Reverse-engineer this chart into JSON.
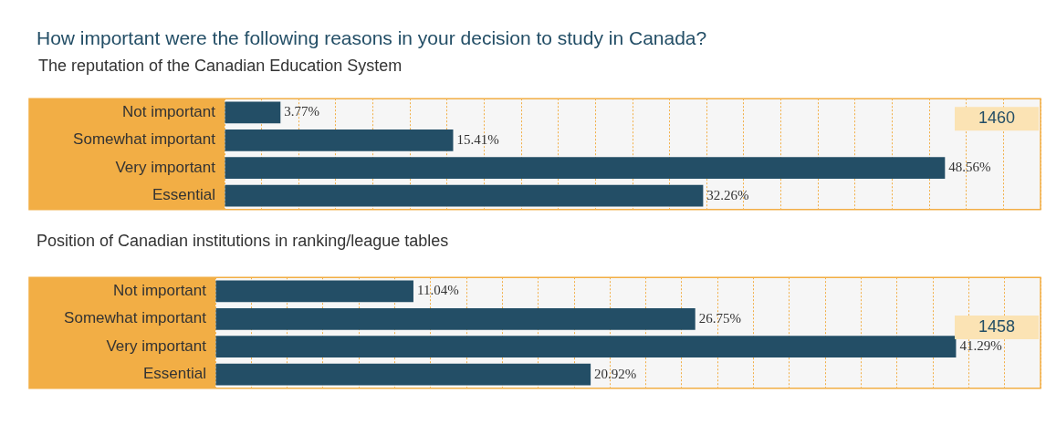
{
  "chart_data": [
    {
      "type": "bar",
      "orientation": "horizontal",
      "title": "How important were the following reasons in your decision to study in Canada?",
      "subtitle": "The reputation of the Canadian Education System",
      "categories": [
        "Not important",
        "Somewhat important",
        "Very important",
        "Essential"
      ],
      "values": [
        3.77,
        15.41,
        48.56,
        32.26
      ],
      "color": "#234e66",
      "value_labels": [
        "3.77%",
        "15.41%",
        "48.56%",
        "32.26%"
      ],
      "xlim": [
        0,
        55
      ],
      "xticks": [
        {
          "value": 0,
          "label": null
        },
        {
          "value": 2.5,
          "label": null
        },
        {
          "value": 5,
          "label": null
        },
        {
          "value": 7.5,
          "label": null
        },
        {
          "value": 10,
          "label": null
        },
        {
          "value": 12.5,
          "label": null
        },
        {
          "value": 15,
          "label": null
        },
        {
          "value": 17.5,
          "label": null
        },
        {
          "value": 20,
          "label": null
        },
        {
          "value": 22.5,
          "label": null
        },
        {
          "value": 25,
          "label": null
        },
        {
          "value": 27.5,
          "label": null
        },
        {
          "value": 30,
          "label": null
        },
        {
          "value": 32.5,
          "label": null
        },
        {
          "value": 35,
          "label": null
        },
        {
          "value": 37.5,
          "label": null
        },
        {
          "value": 40,
          "label": null
        },
        {
          "value": 42.5,
          "label": null
        },
        {
          "value": 45,
          "label": null
        },
        {
          "value": 47.5,
          "label": null
        },
        {
          "value": 50,
          "label": null
        },
        {
          "value": 52.5,
          "label": null
        },
        {
          "value": 55,
          "label": null
        }
      ],
      "tick_labels": "y",
      "grid": "x",
      "legend": false,
      "annotations": [
        "1460"
      ]
    },
    {
      "type": "bar",
      "orientation": "horizontal",
      "title": "Position of Canadian institutions in ranking/league tables",
      "categories": [
        "Not important",
        "Somewhat important",
        "Very important",
        "Essential"
      ],
      "values": [
        11.04,
        26.75,
        41.29,
        20.92
      ],
      "color": "#234e66",
      "value_labels": [
        "11.04%",
        "26.75%",
        "41.29%",
        "20.92%"
      ],
      "xlim": [
        0,
        46
      ],
      "xticks": [
        {
          "value": 0,
          "label": null
        },
        {
          "value": 2,
          "label": null
        },
        {
          "value": 4,
          "label": null
        },
        {
          "value": 6,
          "label": null
        },
        {
          "value": 8,
          "label": null
        },
        {
          "value": 10,
          "label": null
        },
        {
          "value": 12,
          "label": null
        },
        {
          "value": 14,
          "label": null
        },
        {
          "value": 16,
          "label": null
        },
        {
          "value": 18,
          "label": null
        },
        {
          "value": 20,
          "label": null
        },
        {
          "value": 22,
          "label": null
        },
        {
          "value": 24,
          "label": null
        },
        {
          "value": 26,
          "label": null
        },
        {
          "value": 28,
          "label": null
        },
        {
          "value": 30,
          "label": null
        },
        {
          "value": 32,
          "label": null
        },
        {
          "value": 34,
          "label": null
        },
        {
          "value": 36,
          "label": null
        },
        {
          "value": 38,
          "label": null
        },
        {
          "value": 40,
          "label": null
        },
        {
          "value": 42,
          "label": null
        },
        {
          "value": 44,
          "label": null
        },
        {
          "value": 46,
          "label": null
        }
      ],
      "tick_labels": "y",
      "grid": "x",
      "legend": false,
      "annotations": [
        "1458"
      ]
    }
  ]
}
